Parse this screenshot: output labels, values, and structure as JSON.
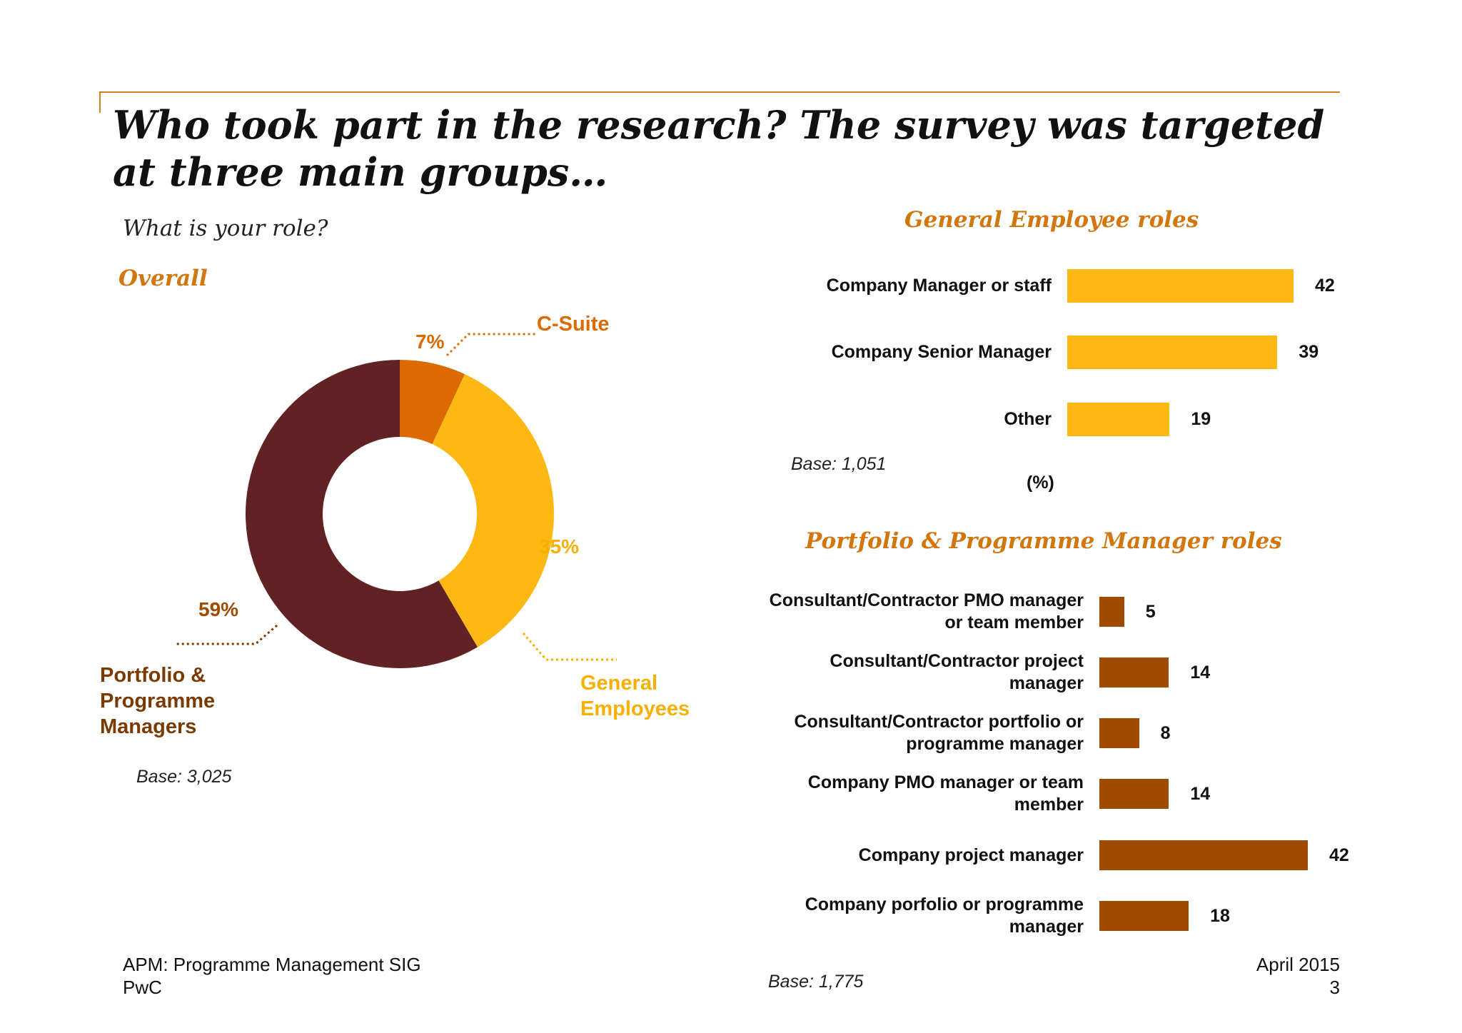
{
  "title": "Who took part in the research? The survey was targeted at three main groups…",
  "question": "What is your role?",
  "overall": {
    "heading": "Overall",
    "base": "Base: 3,025"
  },
  "general_employee_roles": {
    "heading": "General Employee roles",
    "base": "Base: 1,051",
    "unit": "(%)"
  },
  "pm_roles": {
    "heading": "Portfolio & Programme Manager roles",
    "base": "Base: 1,775"
  },
  "footer": {
    "org": "APM: Programme Management SIG",
    "company": "PwC",
    "date": "April 2015",
    "page_number": "3"
  },
  "colors": {
    "accent": "#d4801e",
    "c_suite": "#dd6a00",
    "general": "#fdb813",
    "pm": "#602222",
    "pm_bar": "#a04c00",
    "pm_label": "#7a3a00",
    "ge_label": "#f5b000"
  },
  "chart_data": [
    {
      "type": "pie",
      "title": "Overall",
      "hole": true,
      "slices": [
        {
          "label": "C-Suite",
          "value": 7,
          "value_label": "7%"
        },
        {
          "label": "General Employees",
          "value": 35,
          "value_label": "35%"
        },
        {
          "label": "Portfolio & Programme Managers",
          "value": 59,
          "value_label": "59%"
        }
      ]
    },
    {
      "type": "bar",
      "orientation": "horizontal",
      "title": "General Employee roles",
      "categories": [
        "Company Manager or staff",
        "Company Senior Manager",
        "Other"
      ],
      "values": [
        42,
        39,
        19
      ],
      "value_labels": [
        "42",
        "39",
        "19"
      ],
      "unit": "(%)",
      "xlim": [
        0,
        45
      ]
    },
    {
      "type": "bar",
      "orientation": "horizontal",
      "title": "Portfolio & Programme Manager roles",
      "categories": [
        "Consultant/Contractor PMO manager or team member",
        "Consultant/Contractor project manager",
        "Consultant/Contractor portfolio or programme manager",
        "Company PMO manager or team member",
        "Company project manager",
        "Company porfolio or programme manager"
      ],
      "values": [
        5,
        14,
        8,
        14,
        42,
        18
      ],
      "value_labels": [
        "5",
        "14",
        "8",
        "14",
        "42",
        "18"
      ],
      "xlim": [
        0,
        45
      ]
    }
  ]
}
